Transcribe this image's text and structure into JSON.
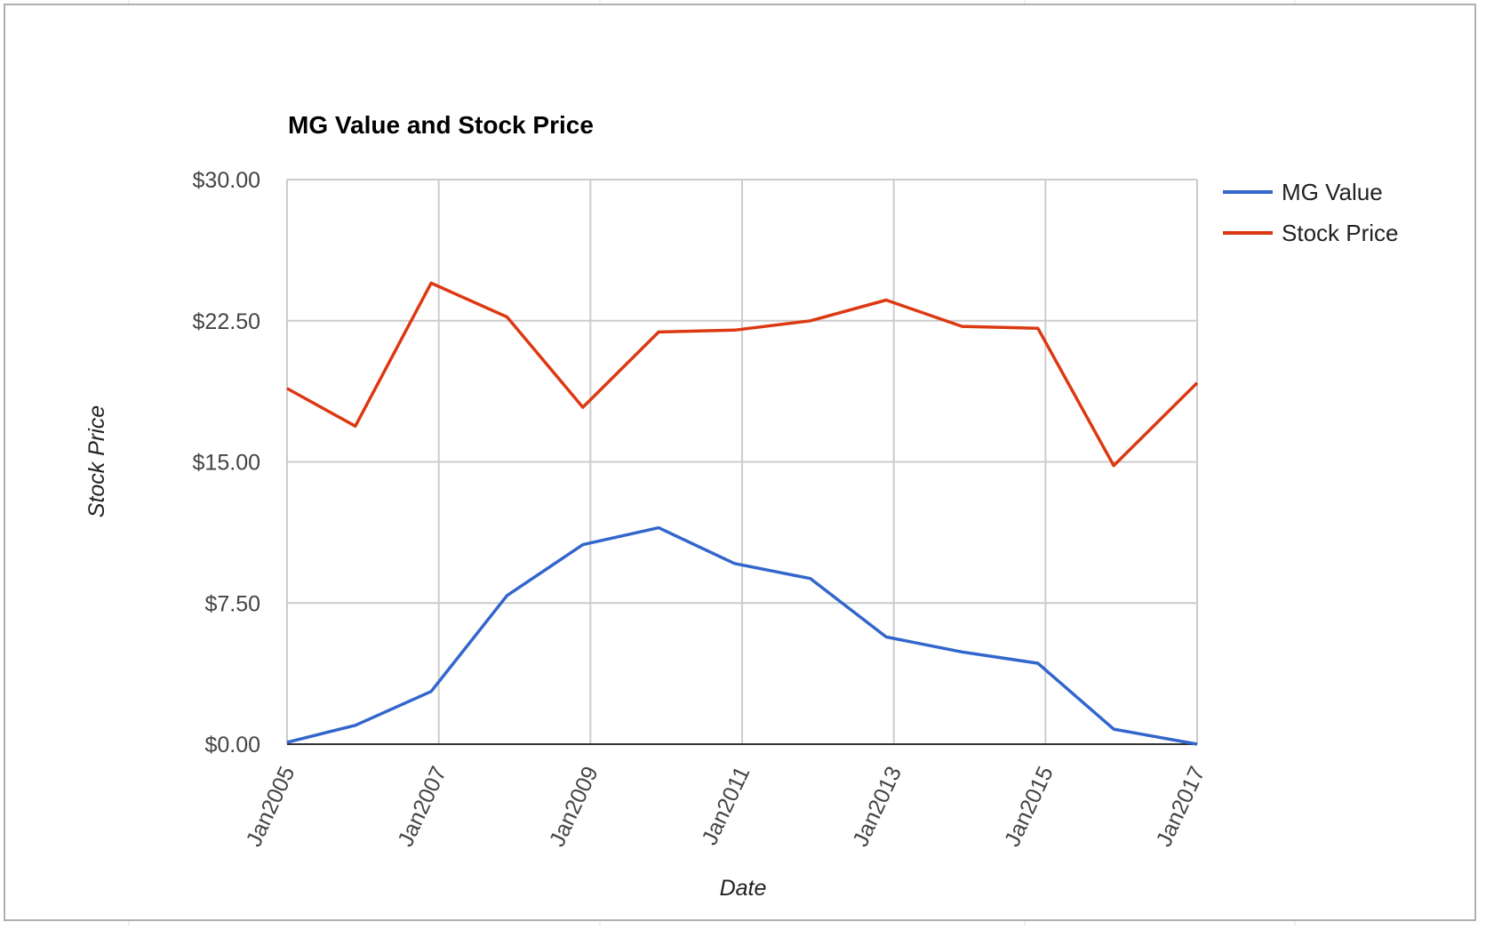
{
  "chart_data": {
    "type": "line",
    "title": "MG Value and Stock Price",
    "xlabel": "Date",
    "ylabel": "Stock Price",
    "ylim": [
      0,
      30
    ],
    "y_ticks": [
      "$0.00",
      "$7.50",
      "$15.00",
      "$22.50",
      "$30.00"
    ],
    "y_tick_values": [
      0,
      7.5,
      15,
      22.5,
      30
    ],
    "x_ticks": [
      "Jan2005",
      "Jan2007",
      "Jan2009",
      "Jan2011",
      "Jan2013",
      "Jan2015",
      "Jan2017"
    ],
    "x_tick_values": [
      2005,
      2007,
      2009,
      2011,
      2013,
      2015,
      2017
    ],
    "xlim": [
      2005,
      2017
    ],
    "grid": true,
    "legend_position": "top-right",
    "series": [
      {
        "name": "MG Value",
        "color": "#3366cc",
        "x": [
          2005,
          2005.9,
          2006.9,
          2007.9,
          2008.9,
          2009.9,
          2010.9,
          2011.9,
          2012.9,
          2013.9,
          2014.9,
          2015.9,
          2017
        ],
        "values": [
          0.1,
          1.0,
          2.8,
          7.9,
          10.6,
          11.5,
          9.6,
          8.8,
          5.7,
          4.9,
          4.3,
          0.8,
          0.0
        ]
      },
      {
        "name": "Stock Price",
        "color": "#dc3912",
        "x": [
          2005,
          2005.9,
          2006.9,
          2007.9,
          2008.9,
          2009.9,
          2010.9,
          2011.9,
          2012.9,
          2013.9,
          2014.9,
          2015.9,
          2017
        ],
        "values": [
          18.9,
          16.9,
          24.5,
          22.7,
          17.9,
          21.9,
          22.0,
          22.5,
          23.6,
          22.2,
          22.1,
          14.8,
          19.2
        ]
      }
    ]
  }
}
